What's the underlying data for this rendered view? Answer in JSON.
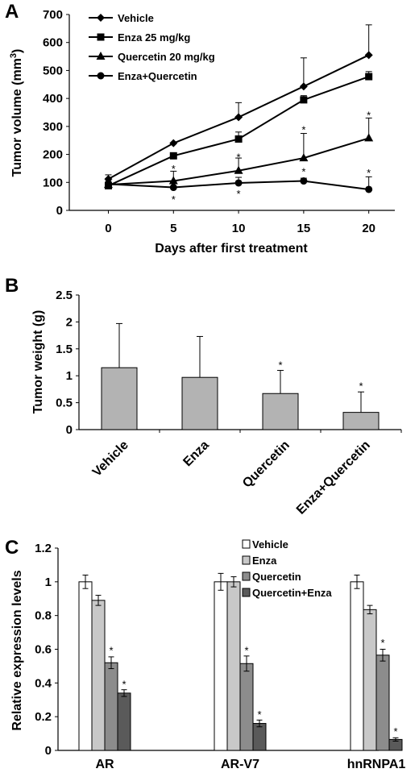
{
  "panels": [
    {
      "label": "A",
      "type": "line",
      "xlabel": "Days after first treatment",
      "ylabel": "Tumor volume (mm3)",
      "ylabel_main": "Tumor volume (mm",
      "ylabel_sup": "3",
      "ylabel_close": ")",
      "x": [
        0,
        5,
        10,
        15,
        20
      ],
      "xlim": [
        -3,
        22
      ],
      "ylim": [
        0,
        700
      ],
      "yticks": [
        0,
        100,
        200,
        300,
        400,
        500,
        600,
        700
      ],
      "grid": false,
      "legend_position": "top-left",
      "series": [
        {
          "name": "Vehicle",
          "marker": "diamond",
          "values": [
            112,
            240,
            333,
            443,
            555
          ],
          "errors": [
            15,
            0,
            52,
            102,
            108
          ]
        },
        {
          "name": "Enza 25 mg/kg",
          "marker": "square",
          "values": [
            88,
            195,
            255,
            395,
            478
          ],
          "errors": [
            10,
            0,
            25,
            15,
            18
          ]
        },
        {
          "name": "Quercetin 20 mg/kg",
          "marker": "triangle",
          "values": [
            92,
            105,
            142,
            187,
            258
          ],
          "errors": [
            8,
            35,
            45,
            88,
            72
          ]
        },
        {
          "name": "Enza+Quercetin",
          "marker": "circle",
          "values": [
            94,
            82,
            98,
            105,
            75
          ],
          "errors": [
            10,
            20,
            20,
            10,
            45
          ]
        }
      ],
      "annotations": [
        {
          "text": "*",
          "x": 5,
          "y": 150
        },
        {
          "text": "*",
          "x": 5,
          "y": 40
        },
        {
          "text": "*",
          "x": 10,
          "y": 192
        },
        {
          "text": "*",
          "x": 10,
          "y": 60
        },
        {
          "text": "*",
          "x": 15,
          "y": 290
        },
        {
          "text": "*",
          "x": 15,
          "y": 140
        },
        {
          "text": "*",
          "x": 20,
          "y": 342
        },
        {
          "text": "*",
          "x": 20,
          "y": 135
        }
      ]
    },
    {
      "label": "B",
      "type": "bar",
      "ylabel": "Tumor weight (g)",
      "categories": [
        "Vehicle",
        "Enza",
        "Quercetin",
        "Enza+Quercetin"
      ],
      "values": [
        1.15,
        0.97,
        0.67,
        0.32
      ],
      "errors": [
        0.82,
        0.76,
        0.43,
        0.38
      ],
      "ylim": [
        0,
        2.5
      ],
      "yticks": [
        "0",
        "0.5",
        "1",
        "1.5",
        "2",
        "2.5"
      ],
      "yticks_values": [
        0,
        0.5,
        1,
        1.5,
        2,
        2.5
      ],
      "bar_color": "#b3b3b3",
      "annotations": [
        {
          "text": "*",
          "category": 2,
          "y": 1.22
        },
        {
          "text": "*",
          "category": 3,
          "y": 0.83
        }
      ]
    },
    {
      "label": "C",
      "type": "bar",
      "ylabel": "Relative expression levels",
      "categories": [
        "AR",
        "AR-V7",
        "hnRNPA1"
      ],
      "ylim": [
        0,
        1.2
      ],
      "yticks": [
        "0",
        "0.2",
        "0.4",
        "0.6",
        "0.8",
        "1",
        "1.2"
      ],
      "yticks_values": [
        0,
        0.2,
        0.4,
        0.6,
        0.8,
        1.0,
        1.2
      ],
      "legend_position": "top-right",
      "series": [
        {
          "name": "Vehicle",
          "color": "#ffffff",
          "values": [
            1.0,
            1.0,
            1.0
          ],
          "errors": [
            0.04,
            0.05,
            0.04
          ]
        },
        {
          "name": "Enza",
          "color": "#c8c8c8",
          "values": [
            0.89,
            1.0,
            0.835
          ],
          "errors": [
            0.03,
            0.03,
            0.025
          ]
        },
        {
          "name": "Quercetin",
          "color": "#8c8c8c",
          "values": [
            0.52,
            0.515,
            0.565
          ],
          "errors": [
            0.035,
            0.045,
            0.035
          ]
        },
        {
          "name": "Quercetin+Enza",
          "color": "#5a5a5a",
          "values": [
            0.34,
            0.16,
            0.065
          ],
          "errors": [
            0.02,
            0.02,
            0.01
          ]
        }
      ],
      "annotations": [
        {
          "text": "*",
          "category": 0,
          "series": 2,
          "y": 0.6
        },
        {
          "text": "*",
          "category": 0,
          "series": 3,
          "y": 0.4
        },
        {
          "text": "*",
          "category": 1,
          "series": 2,
          "y": 0.6
        },
        {
          "text": "*",
          "category": 1,
          "series": 3,
          "y": 0.22
        },
        {
          "text": "*",
          "category": 2,
          "series": 2,
          "y": 0.645
        },
        {
          "text": "*",
          "category": 2,
          "series": 3,
          "y": 0.12
        }
      ]
    }
  ]
}
